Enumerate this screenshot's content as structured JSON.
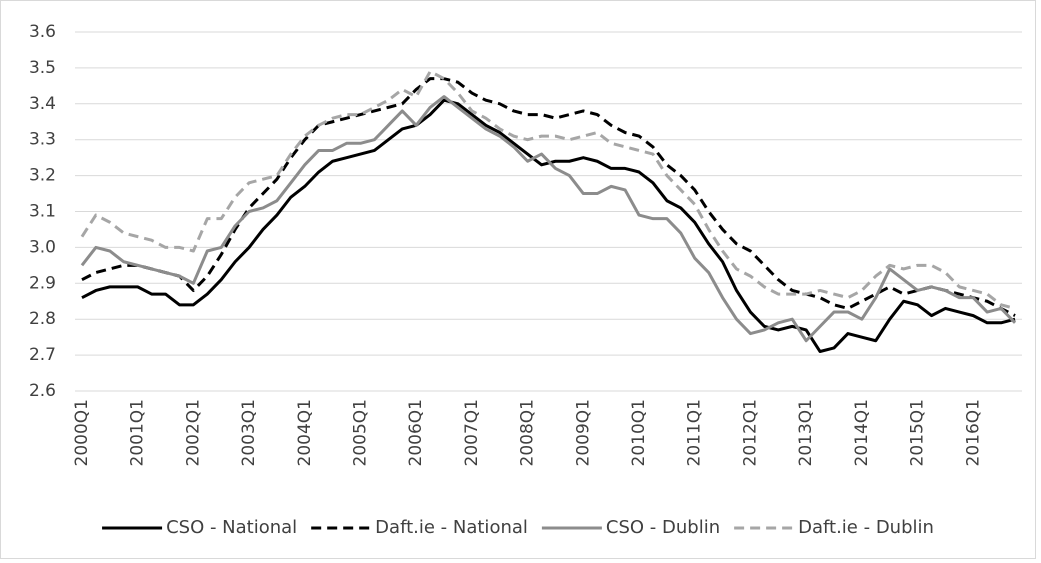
{
  "chart_data": {
    "type": "line",
    "categories": [
      "2000Q1",
      null,
      null,
      null,
      "2001Q1",
      null,
      null,
      null,
      "2002Q1",
      null,
      null,
      null,
      "2003Q1",
      null,
      null,
      null,
      "2004Q1",
      null,
      null,
      null,
      "2005Q1",
      null,
      null,
      null,
      "2006Q1",
      null,
      null,
      null,
      "2007Q1",
      null,
      null,
      null,
      "2008Q1",
      null,
      null,
      null,
      "2009Q1",
      null,
      null,
      null,
      "2010Q1",
      null,
      null,
      null,
      "2011Q1",
      null,
      null,
      null,
      "2012Q1",
      null,
      null,
      null,
      "2013Q1",
      null,
      null,
      null,
      "2014Q1",
      null,
      null,
      null,
      "2015Q1",
      null,
      null,
      null,
      "2016Q1",
      null,
      null,
      null
    ],
    "series": [
      {
        "name": "CSO - National",
        "color": "#000000",
        "dashed": false,
        "values": [
          2.86,
          2.88,
          2.89,
          2.89,
          2.89,
          2.87,
          2.87,
          2.84,
          2.84,
          2.87,
          2.91,
          2.96,
          3.0,
          3.05,
          3.09,
          3.14,
          3.17,
          3.21,
          3.24,
          3.25,
          3.26,
          3.27,
          3.3,
          3.33,
          3.34,
          3.37,
          3.41,
          3.4,
          3.37,
          3.34,
          3.32,
          3.29,
          3.26,
          3.23,
          3.24,
          3.24,
          3.25,
          3.24,
          3.22,
          3.22,
          3.21,
          3.18,
          3.13,
          3.11,
          3.07,
          3.01,
          2.96,
          2.88,
          2.82,
          2.78,
          2.77,
          2.78,
          2.77,
          2.71,
          2.72,
          2.76,
          2.75,
          2.74,
          2.8,
          2.85,
          2.84,
          2.81,
          2.83,
          2.82,
          2.81,
          2.79,
          2.79,
          2.8
        ]
      },
      {
        "name": "Daft.ie - National",
        "color": "#000000",
        "dashed": true,
        "values": [
          2.91,
          2.93,
          2.94,
          2.95,
          2.95,
          2.94,
          2.93,
          2.92,
          2.88,
          2.92,
          2.98,
          3.05,
          3.11,
          3.15,
          3.19,
          3.25,
          3.3,
          3.34,
          3.35,
          3.36,
          3.37,
          3.38,
          3.39,
          3.4,
          3.44,
          3.47,
          3.47,
          3.46,
          3.43,
          3.41,
          3.4,
          3.38,
          3.37,
          3.37,
          3.36,
          3.37,
          3.38,
          3.37,
          3.34,
          3.32,
          3.31,
          3.28,
          3.23,
          3.2,
          3.16,
          3.1,
          3.05,
          3.01,
          2.99,
          2.95,
          2.91,
          2.88,
          2.87,
          2.86,
          2.84,
          2.83,
          2.85,
          2.87,
          2.89,
          2.87,
          2.88,
          2.89,
          2.88,
          2.87,
          2.86,
          2.85,
          2.83,
          2.81
        ]
      },
      {
        "name": "CSO - Dublin",
        "color": "#8c8c8c",
        "dashed": false,
        "values": [
          2.95,
          3.0,
          2.99,
          2.96,
          2.95,
          2.94,
          2.93,
          2.92,
          2.9,
          2.99,
          3.0,
          3.06,
          3.1,
          3.11,
          3.13,
          3.18,
          3.23,
          3.27,
          3.27,
          3.29,
          3.29,
          3.3,
          3.34,
          3.38,
          3.34,
          3.39,
          3.42,
          3.39,
          3.36,
          3.33,
          3.31,
          3.28,
          3.24,
          3.26,
          3.22,
          3.2,
          3.15,
          3.15,
          3.17,
          3.16,
          3.09,
          3.08,
          3.08,
          3.04,
          2.97,
          2.93,
          2.86,
          2.8,
          2.76,
          2.77,
          2.79,
          2.8,
          2.74,
          2.78,
          2.82,
          2.82,
          2.8,
          2.86,
          2.94,
          2.91,
          2.88,
          2.89,
          2.88,
          2.86,
          2.86,
          2.82,
          2.83,
          2.79
        ]
      },
      {
        "name": "Daft.ie - Dublin",
        "color": "#a6a6a6",
        "dashed": true,
        "values": [
          3.03,
          3.09,
          3.07,
          3.04,
          3.03,
          3.02,
          3.0,
          3.0,
          2.99,
          3.08,
          3.08,
          3.14,
          3.18,
          3.19,
          3.2,
          3.26,
          3.31,
          3.34,
          3.36,
          3.37,
          3.37,
          3.39,
          3.41,
          3.44,
          3.42,
          3.49,
          3.47,
          3.43,
          3.38,
          3.36,
          3.33,
          3.31,
          3.3,
          3.31,
          3.31,
          3.3,
          3.31,
          3.32,
          3.29,
          3.28,
          3.27,
          3.26,
          3.2,
          3.16,
          3.12,
          3.05,
          2.99,
          2.94,
          2.92,
          2.89,
          2.87,
          2.87,
          2.87,
          2.88,
          2.87,
          2.86,
          2.88,
          2.92,
          2.95,
          2.94,
          2.95,
          2.95,
          2.93,
          2.89,
          2.88,
          2.87,
          2.84,
          2.83
        ]
      }
    ],
    "ylim": [
      2.6,
      3.6
    ],
    "yticks": [
      2.6,
      2.7,
      2.8,
      2.9,
      {
        "value": 3.0,
        "label": "3.0"
      },
      3.1,
      3.2,
      3.3,
      3.4,
      3.5,
      3.6
    ],
    "grid": true,
    "legend": "bottom"
  }
}
